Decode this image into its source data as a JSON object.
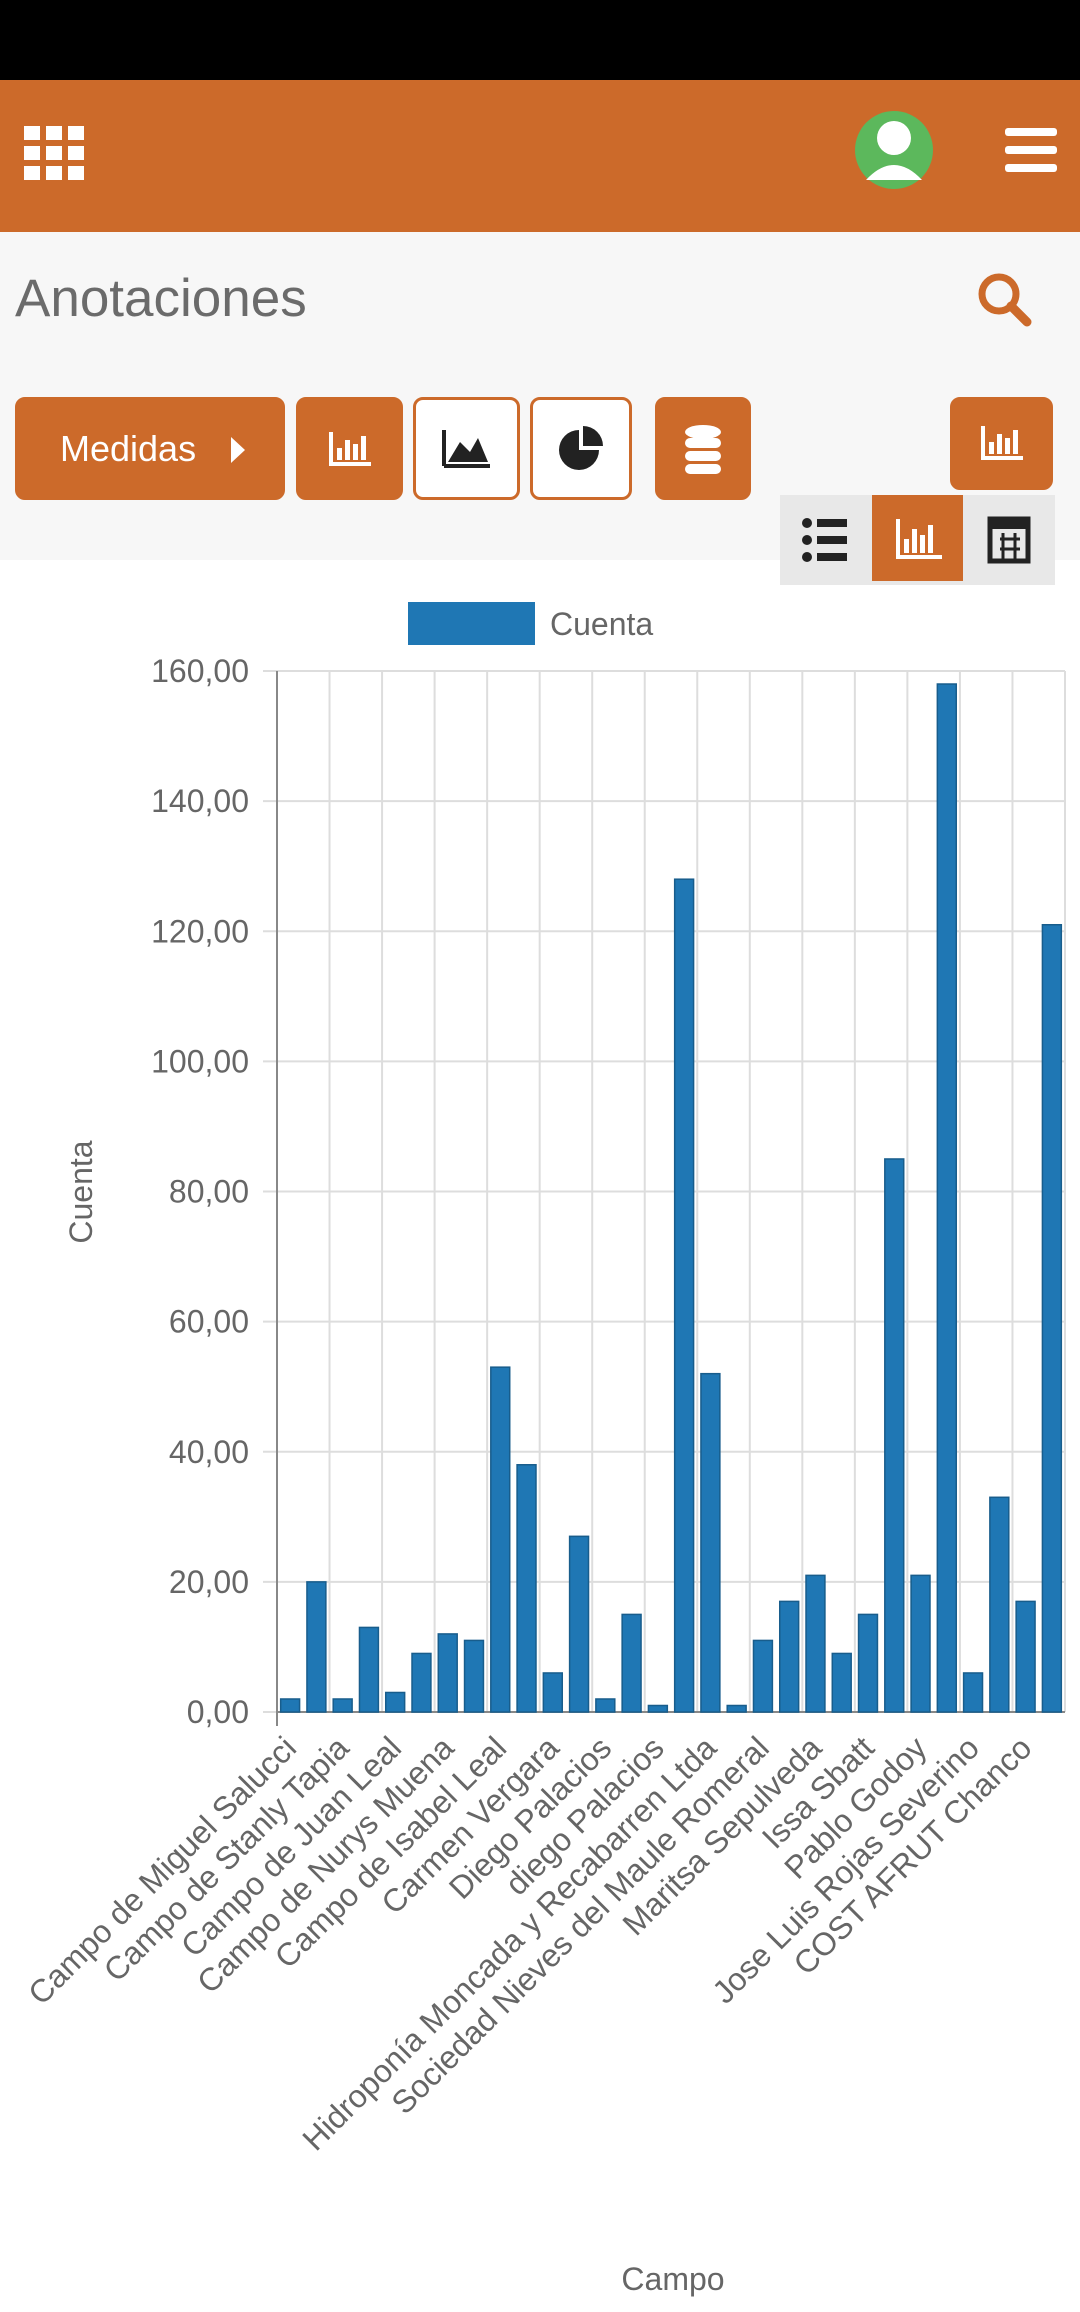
{
  "title": "Anotaciones",
  "measures_button": "Medidas",
  "chart_data": {
    "type": "bar",
    "x_label": "Campo",
    "y_label": "Cuenta",
    "categories": [
      "Campo de Miguel Salucci",
      null,
      "Campo de Stanly Tapia",
      null,
      "Campo de Juan Leal",
      null,
      "Campo de Nurys Muena",
      null,
      "Campo de Isabel Leal",
      null,
      "Carmen Vergara",
      null,
      "Diego Palacios",
      null,
      "diego Palacios",
      null,
      "Hidroponía Moncada y Recabarren Ltda",
      null,
      "Sociedad Nieves del Maule Romeral",
      null,
      "Maritsa Sepulveda",
      null,
      "Issa Sbatt",
      null,
      "Pablo Godoy",
      null,
      "Jose Luis Rojas Severino",
      null,
      "COST AFRUT Chanco",
      null
    ],
    "series": [
      {
        "name": "Cuenta",
        "color": "#1f77b4",
        "values": [
          2,
          20,
          2,
          13,
          3,
          9,
          12,
          11,
          53,
          38,
          6,
          27,
          2,
          15,
          1,
          128,
          52,
          1,
          11,
          17,
          21,
          9,
          15,
          85,
          21,
          158,
          6,
          33,
          17,
          121
        ]
      }
    ],
    "ylim": [
      0,
      160
    ],
    "yticks": [
      {
        "value": 0,
        "label": "0,00"
      },
      {
        "value": 20,
        "label": "20,00"
      },
      {
        "value": 40,
        "label": "40,00"
      },
      {
        "value": 60,
        "label": "60,00"
      },
      {
        "value": 80,
        "label": "80,00"
      },
      {
        "value": 100,
        "label": "100,00"
      },
      {
        "value": 120,
        "label": "120,00"
      },
      {
        "value": 140,
        "label": "140,00"
      },
      {
        "value": 160,
        "label": "160,00"
      }
    ],
    "grid": true,
    "legend": "top"
  }
}
